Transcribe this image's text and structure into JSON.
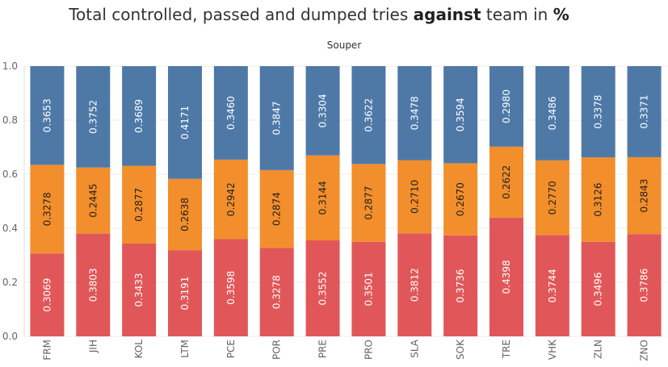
{
  "title_parts": {
    "pre": "Total controlled, passed and dumped tries ",
    "bold1": "against",
    "mid": " team in ",
    "bold2": "%"
  },
  "chart_data": {
    "type": "bar",
    "stacked": true,
    "header": "Souper",
    "categories": [
      "FRM",
      "JIH",
      "KOL",
      "LTM",
      "PCE",
      "POR",
      "PRE",
      "PRO",
      "SLA",
      "SOK",
      "TRE",
      "VHK",
      "ZLN",
      "ZNO"
    ],
    "ylim": [
      0,
      1.0
    ],
    "yticks": [
      "0.0",
      "0.2",
      "0.4",
      "0.6",
      "0.8",
      "1.0"
    ],
    "grid": true,
    "series": [
      {
        "color": "#e15759",
        "label_color": "#ffffff",
        "values": [
          0.3069,
          0.3803,
          0.3433,
          0.3191,
          0.3598,
          0.3278,
          0.3552,
          0.3501,
          0.3812,
          0.3736,
          0.4398,
          0.3744,
          0.3496,
          0.3786
        ],
        "labels": [
          "0.3069",
          "0.3803",
          "0.3433",
          "0.3191",
          "0.3598",
          "0.3278",
          "0.3552",
          "0.3501",
          "0.3812",
          "0.3736",
          "0.4398",
          "0.3744",
          "0.3496",
          "0.3786"
        ]
      },
      {
        "color": "#f28e2b",
        "label_color": "#222222",
        "values": [
          0.3278,
          0.2445,
          0.2877,
          0.2638,
          0.2942,
          0.2874,
          0.3144,
          0.2877,
          0.271,
          0.267,
          0.2622,
          0.277,
          0.3126,
          0.2843
        ],
        "labels": [
          "0.3278",
          "0.2445",
          "0.2877",
          "0.2638",
          "0.2942",
          "0.2874",
          "0.3144",
          "0.2877",
          "0.2710",
          "0.2670",
          "0.2622",
          "0.2770",
          "0.3126",
          "0.2843"
        ]
      },
      {
        "color": "#4e79a7",
        "label_color": "#ffffff",
        "values": [
          0.3653,
          0.3752,
          0.3689,
          0.4171,
          0.346,
          0.3847,
          0.3304,
          0.3622,
          0.3478,
          0.3594,
          0.298,
          0.3486,
          0.3378,
          0.3371
        ],
        "labels": [
          "0.3653",
          "0.3752",
          "0.3689",
          "0.4171",
          "0.3460",
          "0.3847",
          "0.3304",
          "0.3622",
          "0.3478",
          "0.3594",
          "0.2980",
          "0.3486",
          "0.3378",
          "0.3371"
        ]
      }
    ]
  }
}
